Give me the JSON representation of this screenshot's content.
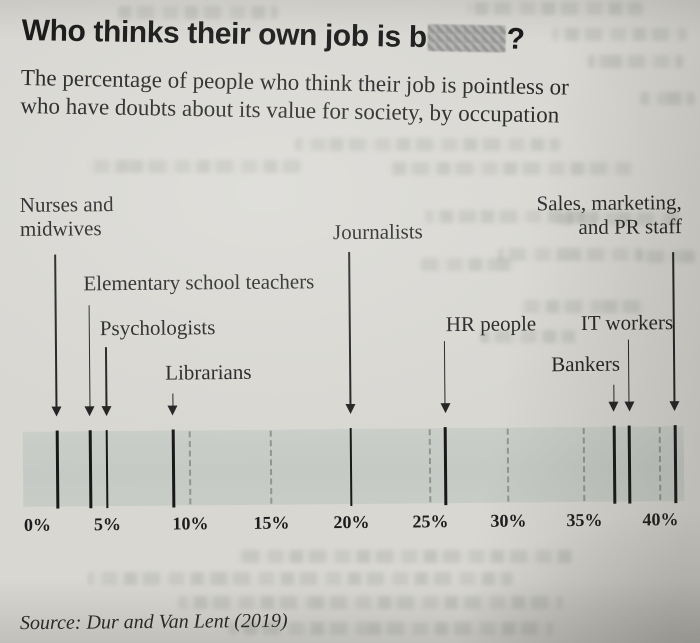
{
  "page": {
    "title": {
      "prefix": "Who thinks their own job is b",
      "redacted_word": "[pixelated-blur-box]",
      "suffix": "?"
    },
    "subtitle_line1": "The percentage of people who think their job is pointless or",
    "subtitle_line2": "who have doubts about its value for society, by occupation",
    "source": "Source: Dur and Van Lent (2019)"
  },
  "chart_data": {
    "type": "scatter",
    "subtype": "one-dimensional strip plot with labeled arrows",
    "points": [
      {
        "label": "Nurses and midwives",
        "value": 2
      },
      {
        "label": "Elementary school teachers",
        "value": 4
      },
      {
        "label": "Psychologists",
        "value": 5
      },
      {
        "label": "Librarians",
        "value": 9
      },
      {
        "label": "Journalists",
        "value": 20
      },
      {
        "label": "HR people",
        "value": 26
      },
      {
        "label": "Bankers",
        "value": 37
      },
      {
        "label": "IT workers",
        "value": 38
      },
      {
        "label": "Sales, marketing, and PR staff",
        "value": 41
      }
    ],
    "x_ticks": [
      "0%",
      "5%",
      "10%",
      "15%",
      "20%",
      "25%",
      "30%",
      "35%",
      "40%"
    ],
    "xlim": [
      0,
      41.5
    ],
    "xlabel": "",
    "ylabel": "",
    "gridlines_dashed_at": [
      10,
      15,
      25,
      30,
      35,
      40
    ],
    "solid_marks_at_values": true,
    "legend": "none"
  },
  "colors": {
    "page_background": "#d8d7d2",
    "band_background": "#c6cbc6",
    "text": "#1f1f1f",
    "dashed_gridline": "#868c86",
    "redaction_box": "#9e9e9c"
  }
}
